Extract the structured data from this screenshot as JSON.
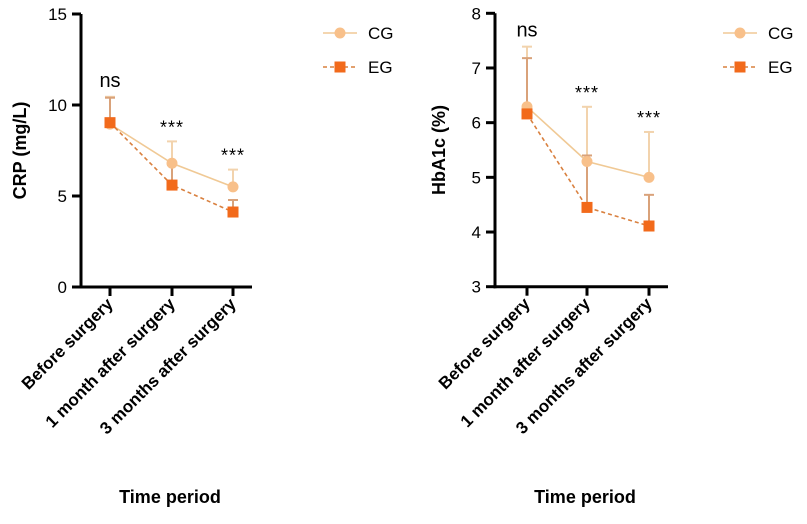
{
  "chart_data": [
    {
      "type": "line",
      "title": "",
      "xlabel": "Time period",
      "ylabel": "CRP (mg/L)",
      "ylim": [
        0,
        15
      ],
      "yticks": [
        0,
        5,
        10,
        15
      ],
      "categories": [
        "Before surgery",
        "1 month after surgery",
        "3 months after surgery"
      ],
      "significance": [
        "ns",
        "***",
        "***"
      ],
      "legend_position": "right",
      "series": [
        {
          "name": "CG",
          "marker": "circle",
          "line": "solid",
          "color": "#f8c08a",
          "values": [
            8.95,
            6.8,
            5.5
          ],
          "error_upper": [
            10.45,
            8.0,
            6.45
          ]
        },
        {
          "name": "EG",
          "marker": "square",
          "line": "dashed",
          "color": "#f26a1b",
          "values": [
            9.03,
            5.6,
            4.12
          ],
          "error_upper": [
            10.4,
            6.7,
            4.78
          ]
        }
      ]
    },
    {
      "type": "line",
      "title": "",
      "xlabel": "Time period",
      "ylabel": "HbA1c (%)",
      "ylim": [
        3,
        8
      ],
      "yticks": [
        3,
        4,
        5,
        6,
        7,
        8
      ],
      "categories": [
        "Before surgery",
        "1 month after surgery",
        "3 months after surgery"
      ],
      "significance": [
        "ns",
        "***",
        "***"
      ],
      "legend_position": "right",
      "series": [
        {
          "name": "CG",
          "marker": "circle",
          "line": "solid",
          "color": "#f8c08a",
          "values": [
            6.29,
            5.29,
            5.0
          ],
          "error_upper": [
            7.39,
            6.29,
            5.83
          ]
        },
        {
          "name": "EG",
          "marker": "square",
          "line": "dashed",
          "color": "#f26a1b",
          "values": [
            6.16,
            4.45,
            4.11
          ],
          "error_upper": [
            7.18,
            5.4,
            4.68
          ]
        }
      ]
    }
  ]
}
